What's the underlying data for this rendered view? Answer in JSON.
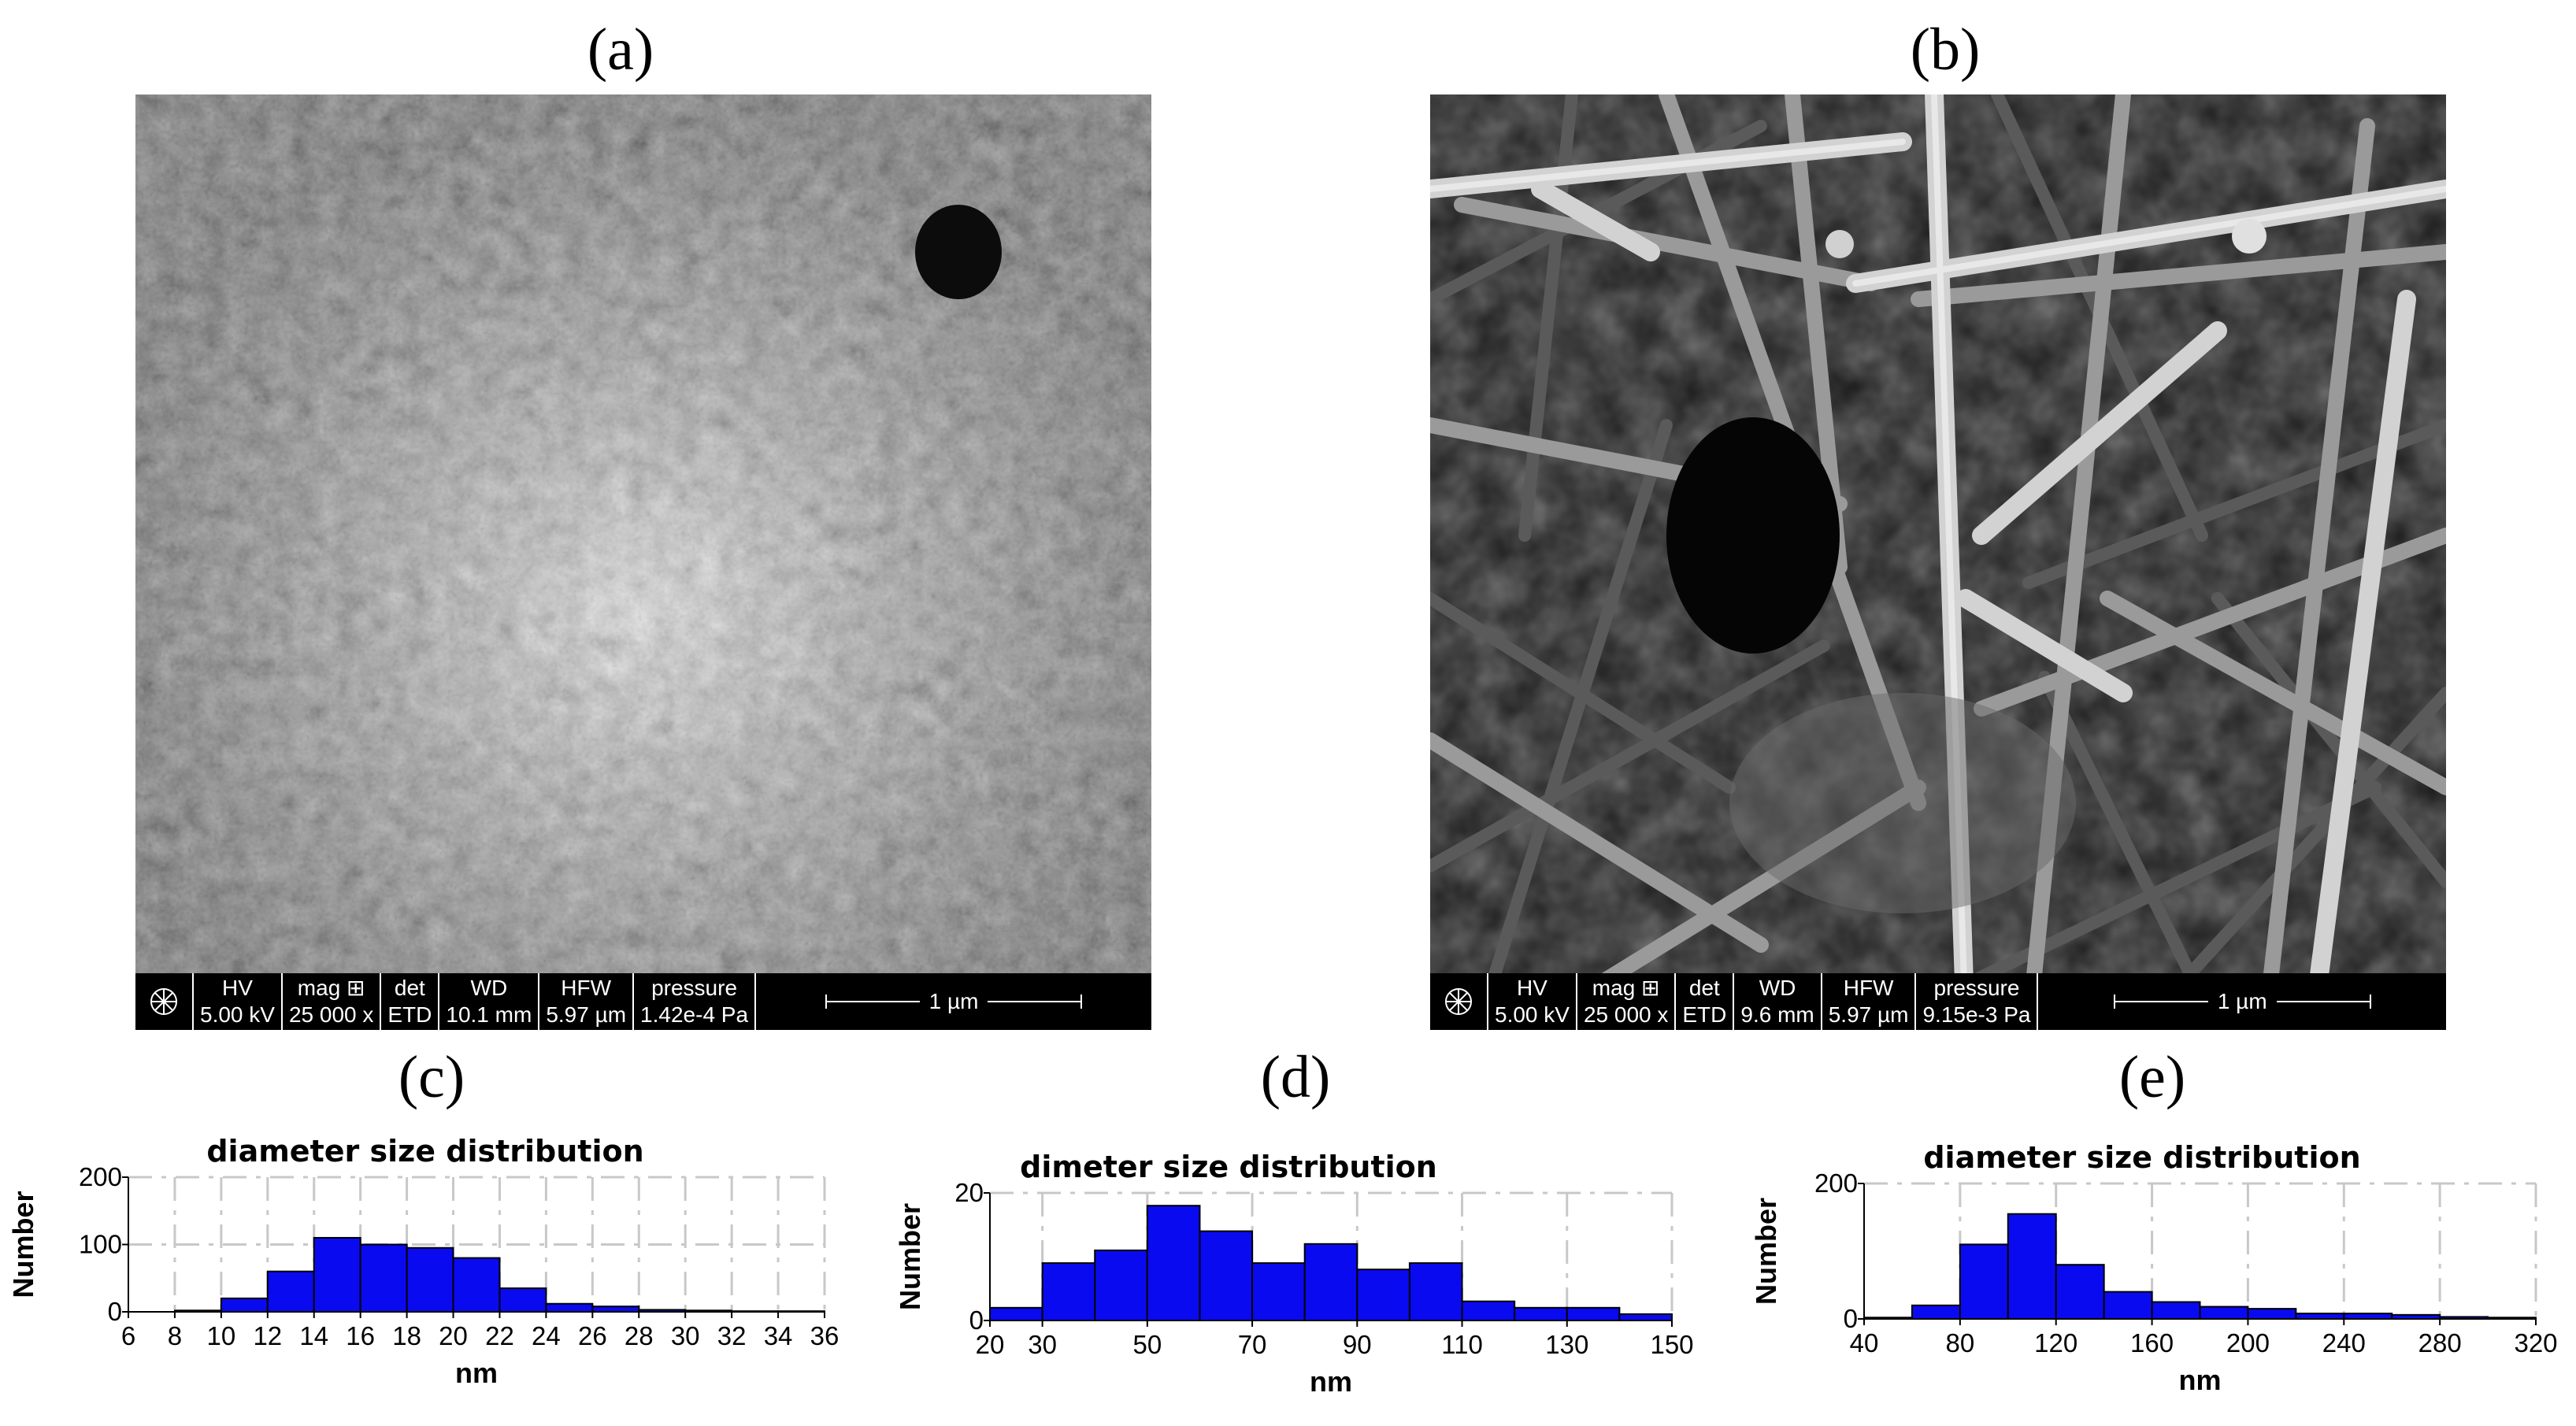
{
  "panels": {
    "a": {
      "label": "(a)",
      "databar": {
        "hv": [
          "HV",
          "5.00 kV"
        ],
        "mag": [
          "mag ⊞",
          "25 000 x"
        ],
        "det": [
          "det",
          "ETD"
        ],
        "wd": [
          "WD",
          "10.1 mm"
        ],
        "hfw": [
          "HFW",
          "5.97 µm"
        ],
        "pressure": [
          "pressure",
          "1.42e-4 Pa"
        ],
        "scale": "1 µm"
      }
    },
    "b": {
      "label": "(b)",
      "databar": {
        "hv": [
          "HV",
          "5.00 kV"
        ],
        "mag": [
          "mag ⊞",
          "25 000 x"
        ],
        "det": [
          "det",
          "ETD"
        ],
        "wd": [
          "WD",
          "9.6 mm"
        ],
        "hfw": [
          "HFW",
          "5.97 µm"
        ],
        "pressure": [
          "pressure",
          "9.15e-3 Pa"
        ],
        "scale": "1 µm"
      }
    },
    "c": {
      "label": "(c)"
    },
    "d": {
      "label": "(d)"
    },
    "e": {
      "label": "(e)"
    }
  },
  "colors": {
    "bar_fill": "#0a0af0",
    "bar_stroke": "#000000",
    "grid": "#c8c8c8"
  },
  "chart_data": [
    {
      "type": "bar",
      "title": "diameter size distribution",
      "xlabel": "nm",
      "ylabel": "Number",
      "xlim": [
        6,
        36
      ],
      "ylim": [
        0,
        200
      ],
      "xticks": [
        6,
        8,
        10,
        12,
        14,
        16,
        18,
        20,
        22,
        24,
        26,
        28,
        30,
        32,
        34,
        36
      ],
      "yticks": [
        0,
        100,
        200
      ],
      "grid": true,
      "bin_width": 2,
      "x": [
        8,
        10,
        12,
        14,
        16,
        18,
        20,
        22,
        24,
        26,
        28,
        30,
        32,
        34
      ],
      "values": [
        2,
        20,
        60,
        110,
        100,
        95,
        80,
        35,
        12,
        8,
        3,
        2,
        1,
        1
      ]
    },
    {
      "type": "bar",
      "title": "dimeter size distribution",
      "xlabel": "nm",
      "ylabel": "Number",
      "xlim": [
        20,
        150
      ],
      "ylim": [
        0,
        20
      ],
      "xticks": [
        20,
        30,
        50,
        70,
        90,
        110,
        130,
        150
      ],
      "yticks": [
        0,
        20
      ],
      "grid": true,
      "bin_width": 10,
      "x": [
        20,
        30,
        40,
        50,
        60,
        70,
        80,
        90,
        100,
        110,
        120,
        130,
        140
      ],
      "values": [
        2,
        9,
        11,
        18,
        14,
        9,
        12,
        8,
        9,
        3,
        2,
        2,
        1
      ]
    },
    {
      "type": "bar",
      "title": "diameter size distribution",
      "xlabel": "nm",
      "ylabel": "Number",
      "xlim": [
        40,
        320
      ],
      "ylim": [
        0,
        200
      ],
      "xticks": [
        40,
        80,
        120,
        160,
        200,
        240,
        280,
        320
      ],
      "yticks": [
        0,
        200
      ],
      "grid": true,
      "bin_width": 20,
      "x": [
        40,
        60,
        80,
        100,
        120,
        140,
        160,
        180,
        200,
        220,
        240,
        260,
        280,
        300
      ],
      "values": [
        2,
        20,
        110,
        155,
        80,
        40,
        25,
        18,
        15,
        8,
        8,
        6,
        3,
        2
      ]
    }
  ]
}
